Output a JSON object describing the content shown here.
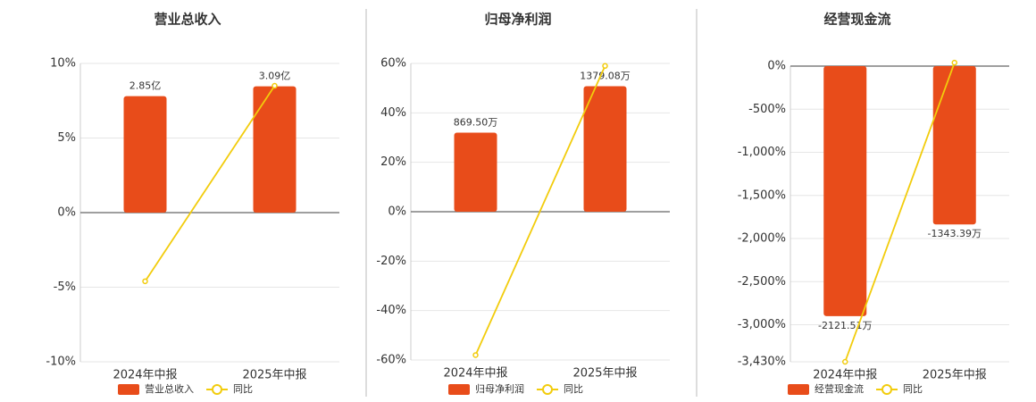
{
  "chart_data": [
    {
      "type": "bar",
      "title": "营业总收入",
      "categories": [
        "2024年中报",
        "2025年中报"
      ],
      "series": [
        {
          "name": "营业总收入",
          "color": "#e84c1a",
          "axis": "y2",
          "values": [
            2.85,
            3.09
          ],
          "value_labels": [
            "2.85亿",
            "3.09亿"
          ]
        },
        {
          "name": "同比",
          "color": "#f2cc0c",
          "type": "line",
          "values": [
            -4.6,
            8.5
          ]
        }
      ],
      "ylim": [
        -10,
        10
      ],
      "yticks": [
        {
          "value": -10,
          "label": "-10%"
        },
        {
          "value": -5,
          "label": "-5%"
        },
        {
          "value": 0,
          "label": "0%"
        },
        {
          "value": 5,
          "label": "5%"
        },
        {
          "value": 10,
          "label": "10%"
        }
      ],
      "y2lim": [
        -3.65,
        3.65
      ],
      "grid": true
    },
    {
      "type": "bar",
      "title": "归母净利润",
      "categories": [
        "2024年中报",
        "2025年中报"
      ],
      "series": [
        {
          "name": "归母净利润",
          "color": "#e84c1a",
          "axis": "y2",
          "values": [
            869.5,
            1379.08
          ],
          "value_labels": [
            "869.50万",
            "1379.08万"
          ]
        },
        {
          "name": "同比",
          "color": "#f2cc0c",
          "type": "line",
          "values": [
            -58,
            59
          ]
        }
      ],
      "ylim": [
        -60,
        60
      ],
      "yticks": [
        {
          "value": -60,
          "label": "-60%"
        },
        {
          "value": -40,
          "label": "-40%"
        },
        {
          "value": -20,
          "label": "-20%"
        },
        {
          "value": 0,
          "label": "0%"
        },
        {
          "value": 20,
          "label": "20%"
        },
        {
          "value": 40,
          "label": "40%"
        },
        {
          "value": 60,
          "label": "60%"
        }
      ],
      "y2lim": [
        -1630,
        1630
      ],
      "grid": true
    },
    {
      "type": "bar",
      "title": "经营现金流",
      "categories": [
        "2024年中报",
        "2025年中报"
      ],
      "series": [
        {
          "name": "经营现金流",
          "color": "#e84c1a",
          "axis": "y2",
          "values": [
            -2121.51,
            -1343.39
          ],
          "value_labels": [
            "-2121.51万",
            "-1343.39万"
          ]
        },
        {
          "name": "同比",
          "color": "#f2cc0c",
          "type": "line",
          "values": [
            -3430,
            40
          ]
        }
      ],
      "ylim": [
        -3430,
        0
      ],
      "yticks": [
        {
          "value": -3430,
          "label": "-3,430%"
        },
        {
          "value": -3000,
          "label": "-3,000%"
        },
        {
          "value": -2500,
          "label": "-2,500%"
        },
        {
          "value": -2000,
          "label": "-2,000%"
        },
        {
          "value": -1500,
          "label": "-1,500%"
        },
        {
          "value": -1000,
          "label": "-1,000%"
        },
        {
          "value": -500,
          "label": "-500%"
        },
        {
          "value": 0,
          "label": "0%"
        }
      ],
      "y2lim": [
        -2509,
        0
      ],
      "grid": true
    }
  ]
}
